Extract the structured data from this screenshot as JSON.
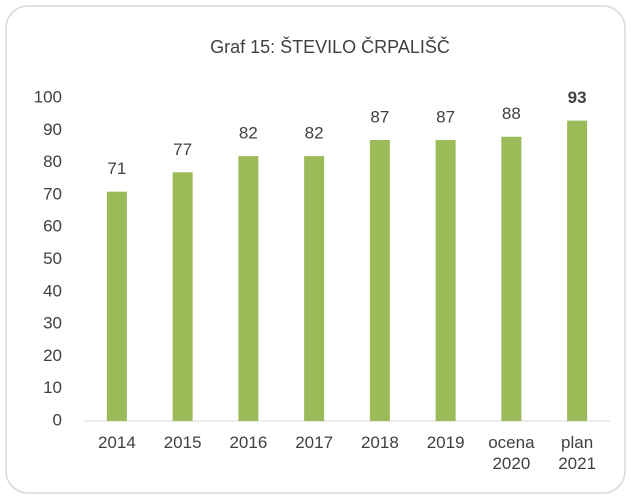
{
  "chart_data": {
    "type": "bar",
    "title": "Graf 15: ŠTEVILO ČRPALIŠČ",
    "categories": [
      "2014",
      "2015",
      "2016",
      "2017",
      "2018",
      "2019",
      "ocena 2020",
      "plan 2021"
    ],
    "values": [
      71,
      77,
      82,
      82,
      87,
      87,
      88,
      93
    ],
    "color": "#9bbb59",
    "ylim": [
      0,
      100
    ],
    "yticks": [
      0,
      10,
      20,
      30,
      40,
      50,
      60,
      70,
      80,
      90,
      100
    ],
    "grid": false,
    "bold_last_label": true
  }
}
